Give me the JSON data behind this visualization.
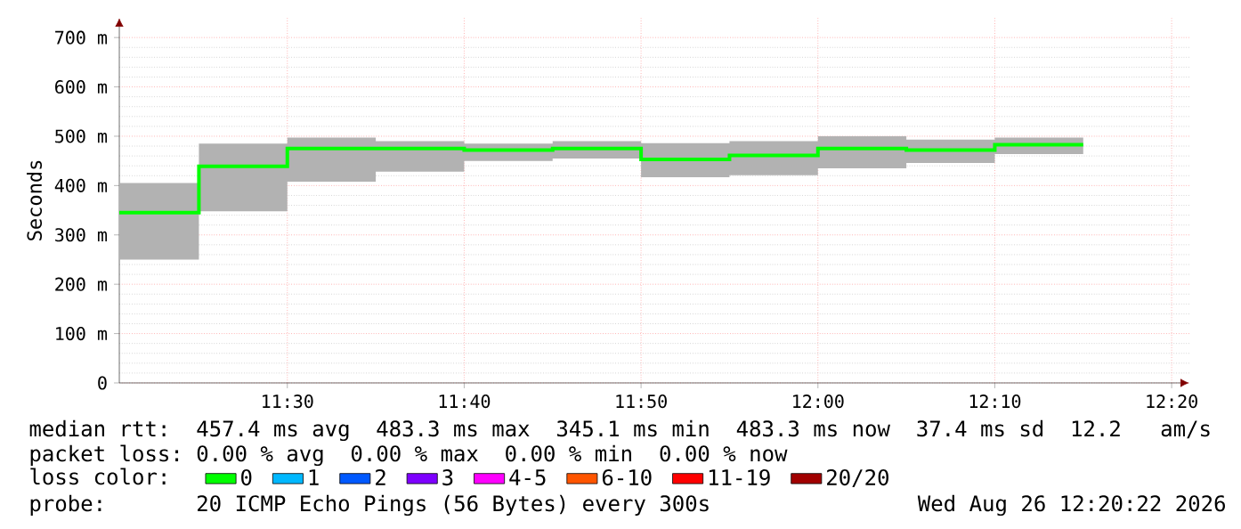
{
  "chart_data": {
    "type": "step",
    "ylabel": "Seconds",
    "x": [
      11.341667,
      11.416667,
      11.5,
      11.583333,
      11.666667,
      11.75,
      11.833333,
      11.916667,
      12,
      12.083333,
      12.166667,
      12.25
    ],
    "series": [
      {
        "name": "0",
        "color": "#00ff00",
        "values": [
          345,
          439,
          475,
          475,
          472,
          475,
          453,
          461,
          475,
          472,
          483,
          483
        ],
        "lower": [
          250,
          348,
          408,
          428,
          450,
          455,
          417,
          421,
          435,
          446,
          464,
          464
        ],
        "upper": [
          405,
          485,
          497,
          490,
          485,
          490,
          486,
          490,
          500,
          493,
          497,
          497
        ]
      },
      {
        "name": "1",
        "color": "#00b8ff",
        "values": [
          null,
          null,
          null,
          null,
          null,
          null,
          null,
          null,
          null,
          null,
          null,
          null
        ]
      },
      {
        "name": "2",
        "color": "#0059ff",
        "values": [
          null,
          null,
          null,
          null,
          null,
          null,
          null,
          null,
          null,
          null,
          null,
          null
        ]
      },
      {
        "name": "3",
        "color": "#7e00ff",
        "values": [
          null,
          null,
          null,
          null,
          null,
          null,
          null,
          null,
          null,
          null,
          null,
          null
        ]
      },
      {
        "name": "4-5",
        "color": "#ff00ff",
        "values": [
          null,
          null,
          null,
          null,
          null,
          null,
          null,
          null,
          null,
          null,
          null,
          null
        ]
      },
      {
        "name": "6-10",
        "color": "#ff5500",
        "values": [
          null,
          null,
          null,
          null,
          null,
          null,
          null,
          null,
          null,
          null,
          null,
          null
        ]
      },
      {
        "name": "11-19",
        "color": "#ff0000",
        "values": [
          null,
          null,
          null,
          null,
          null,
          null,
          null,
          null,
          null,
          null,
          null,
          null
        ]
      },
      {
        "name": "20/20",
        "color": "#a10000",
        "values": [
          null,
          null,
          null,
          null,
          null,
          null,
          null,
          null,
          null,
          null,
          null,
          null
        ]
      }
    ],
    "xlim": [
      11.341667,
      12.35
    ],
    "xticks": [
      {
        "value": 11.5,
        "label": "11:30"
      },
      {
        "value": 11.666667,
        "label": "11:40"
      },
      {
        "value": 11.833333,
        "label": "11:50"
      },
      {
        "value": 12,
        "label": "12:00"
      },
      {
        "value": 12.166667,
        "label": "12:10"
      },
      {
        "value": 12.333333,
        "label": "12:20"
      }
    ],
    "ylim": [
      0,
      740
    ],
    "yticks": [
      0,
      {
        "value": 100,
        "label": "100 m"
      },
      {
        "value": 200,
        "label": "200 m"
      },
      {
        "value": 300,
        "label": "300 m"
      },
      {
        "value": 400,
        "label": "400 m"
      },
      {
        "value": 500,
        "label": "500 m"
      },
      {
        "value": 600,
        "label": "600 m"
      },
      {
        "value": 700,
        "label": "700 m"
      }
    ],
    "grid": true,
    "legend": "bottom",
    "legend_title": "loss color:",
    "annotations": [
      "median rtt:",
      "457.4 ms avg",
      "483.3 ms max",
      "345.1 ms min",
      "483.3 ms now",
      "37.4 ms sd",
      "12.2",
      "am/s",
      "packet loss:",
      "0.00 % avg",
      "0.00 % max",
      "0.00 % min",
      "0.00 % now",
      "probe:",
      "20 ICMP Echo Pings (56 Bytes) every 300s",
      "Wed Aug 26 12:20:22 2026"
    ]
  }
}
